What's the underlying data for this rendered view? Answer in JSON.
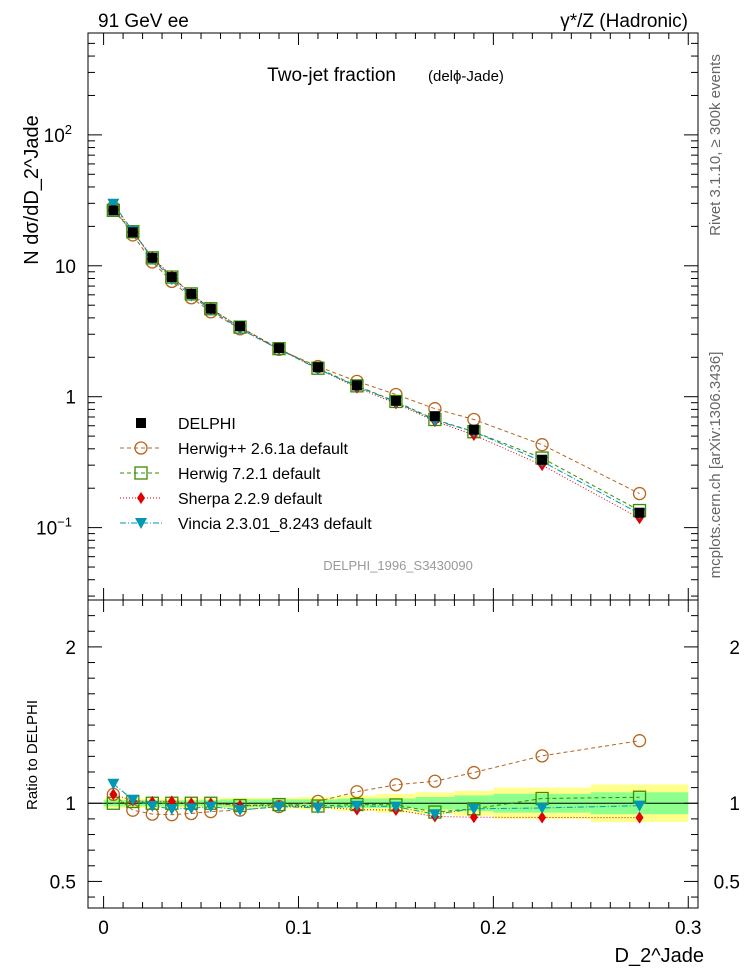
{
  "header": {
    "left": "91 GeV ee",
    "right": "γ*/Z (Hadronic)"
  },
  "side": {
    "top": "Rivet 3.1.10, ≥ 300k events",
    "bottom": "mcplots.cern.ch [arXiv:1306.3436]"
  },
  "chart_data": {
    "type": "line",
    "title": "Two-jet fraction",
    "subtitle": "(delϕ-Jade)",
    "watermark": "DELPHI_1996_S3430090",
    "xlabel": "D_2^Jade",
    "ylabel": "N dσ/dD_2^Jade",
    "ratio_ylabel": "Ratio to DELPHI",
    "xlim": [
      -0.008,
      0.305
    ],
    "ylim": [
      0.028,
      600
    ],
    "ratio_ylim": [
      0.33,
      2.3
    ],
    "x_ticks": [
      {
        "v": 0,
        "label": "0"
      },
      {
        "v": 0.1,
        "label": "0.1"
      },
      {
        "v": 0.2,
        "label": "0.2"
      },
      {
        "v": 0.3,
        "label": "0.3"
      }
    ],
    "y_ticks": [
      {
        "v": 0.1,
        "base": "10",
        "exp": "−1"
      },
      {
        "v": 1,
        "base": "1",
        "exp": ""
      },
      {
        "v": 10,
        "base": "10",
        "exp": ""
      },
      {
        "v": 100,
        "base": "10",
        "exp": "2"
      }
    ],
    "ratio_ticks": [
      {
        "v": 0.5,
        "label": "0.5"
      },
      {
        "v": 1,
        "label": "1"
      },
      {
        "v": 2,
        "label": "2"
      }
    ],
    "x": [
      0.005,
      0.015,
      0.025,
      0.035,
      0.045,
      0.055,
      0.07,
      0.09,
      0.11,
      0.13,
      0.15,
      0.17,
      0.19,
      0.225,
      0.275
    ],
    "data": {
      "name": "DELPHI",
      "values": [
        26.5,
        18.0,
        11.5,
        8.2,
        6.1,
        4.7,
        3.45,
        2.35,
        1.68,
        1.22,
        0.93,
        0.71,
        0.56,
        0.33,
        0.13
      ]
    },
    "bands": {
      "x_edges": [
        0.0,
        0.01,
        0.02,
        0.03,
        0.04,
        0.05,
        0.06,
        0.08,
        0.1,
        0.12,
        0.14,
        0.16,
        0.18,
        0.2,
        0.25,
        0.3
      ],
      "green": [
        0.02,
        0.02,
        0.02,
        0.02,
        0.02,
        0.02,
        0.025,
        0.025,
        0.025,
        0.03,
        0.03,
        0.04,
        0.05,
        0.06,
        0.07
      ],
      "yellow": [
        0.03,
        0.03,
        0.03,
        0.03,
        0.03,
        0.03,
        0.035,
        0.035,
        0.04,
        0.05,
        0.06,
        0.07,
        0.08,
        0.1,
        0.12
      ]
    },
    "series": [
      {
        "name": "Herwig++ 2.6.1a default",
        "color": "#b5651d",
        "marker": "circle-open",
        "dash": "4,3",
        "values": [
          28.0,
          17.2,
          10.7,
          7.6,
          5.7,
          4.45,
          3.3,
          2.3,
          1.7,
          1.31,
          1.04,
          0.81,
          0.67,
          0.43,
          0.182
        ]
      },
      {
        "name": "Herwig 7.2.1 default",
        "color": "#3a8c00",
        "marker": "square-open",
        "dash": "4,3",
        "values": [
          26.5,
          18.2,
          11.5,
          8.2,
          6.1,
          4.7,
          3.4,
          2.33,
          1.65,
          1.21,
          0.92,
          0.67,
          0.54,
          0.34,
          0.135
        ]
      },
      {
        "name": "Sherpa 2.2.9 default",
        "color": "#e00000",
        "marker": "diamond",
        "dash": "1,2",
        "values": [
          28.0,
          18.3,
          11.6,
          8.3,
          6.1,
          4.7,
          3.4,
          2.31,
          1.64,
          1.17,
          0.89,
          0.65,
          0.51,
          0.3,
          0.118
        ]
      },
      {
        "name": "Vincia 2.3.01_8.243 default",
        "color": "#0097b5",
        "marker": "triangle-down",
        "dash": "6,2,1,2",
        "values": [
          29.8,
          18.4,
          11.3,
          7.9,
          5.9,
          4.6,
          3.3,
          2.3,
          1.63,
          1.2,
          0.91,
          0.66,
          0.54,
          0.32,
          0.128
        ]
      }
    ]
  }
}
